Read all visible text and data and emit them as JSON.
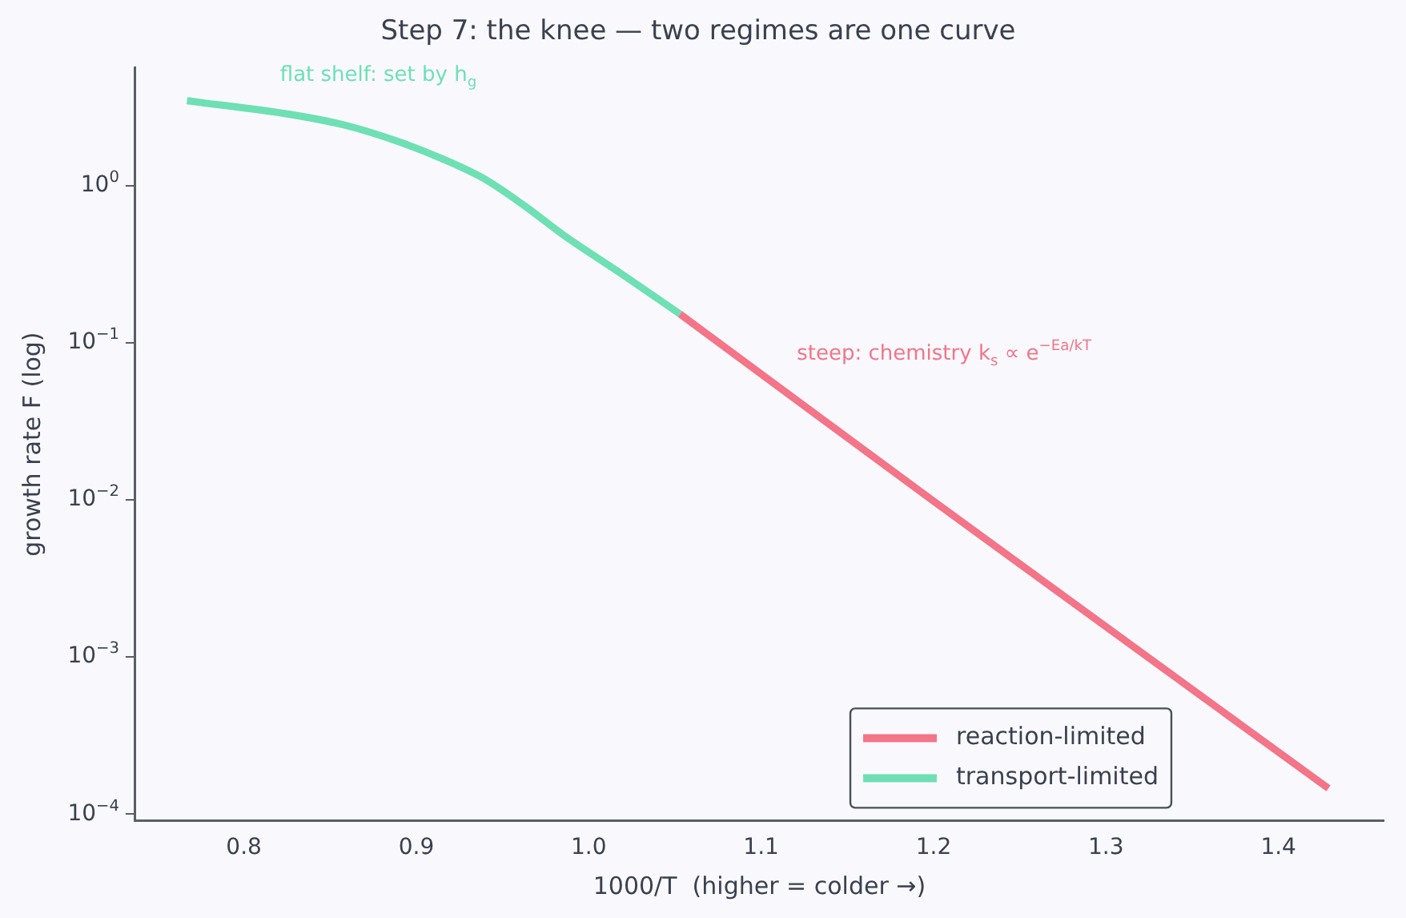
{
  "chart_data": {
    "type": "line",
    "title": "Step 7: the knee — two regimes are one curve",
    "xlabel": "1000/T  (higher = colder →)",
    "ylabel": "growth rate F (log)",
    "series": [
      {
        "name": "reaction-limited",
        "color": "#f47488",
        "x": [
          1.053,
          1.2,
          1.429
        ],
        "values": [
          0.152,
          0.0098,
          0.000146
        ]
      },
      {
        "name": "transport-limited",
        "color": "#6ee0b4",
        "x": [
          0.767,
          0.828,
          0.86,
          0.891,
          0.915,
          0.939,
          0.963,
          0.987,
          1.018,
          1.053
        ],
        "values": [
          3.46,
          2.82,
          2.4,
          1.88,
          1.48,
          1.11,
          0.74,
          0.47,
          0.279,
          0.152
        ]
      }
    ],
    "annotations": [
      "flat shelf: set by h$_{g}$",
      "steep: chemistry k$_{s}$ ∝ e$^{−Ea/kT}$"
    ],
    "xlim": [
      0.737,
      1.461
    ],
    "xticks": [
      0.8,
      0.9,
      {
        "value": 1,
        "label": "1.0"
      },
      1.1,
      1.2,
      1.3,
      1.4
    ],
    "ylim": [
      9.1e-05,
      5.6
    ],
    "yticks": [
      {
        "value": 0.0001,
        "label": "10$^{−4}$"
      },
      {
        "value": 0.001,
        "label": "10$^{−3}$"
      },
      {
        "value": 0.01,
        "label": "10$^{−2}$"
      },
      {
        "value": 0.1,
        "label": "10$^{−1}$"
      },
      {
        "value": 1,
        "label": "10$^{0}$"
      }
    ],
    "log": "y",
    "grid": false,
    "legend": "bottom right",
    "marker": "none",
    "line_style": "solid"
  }
}
